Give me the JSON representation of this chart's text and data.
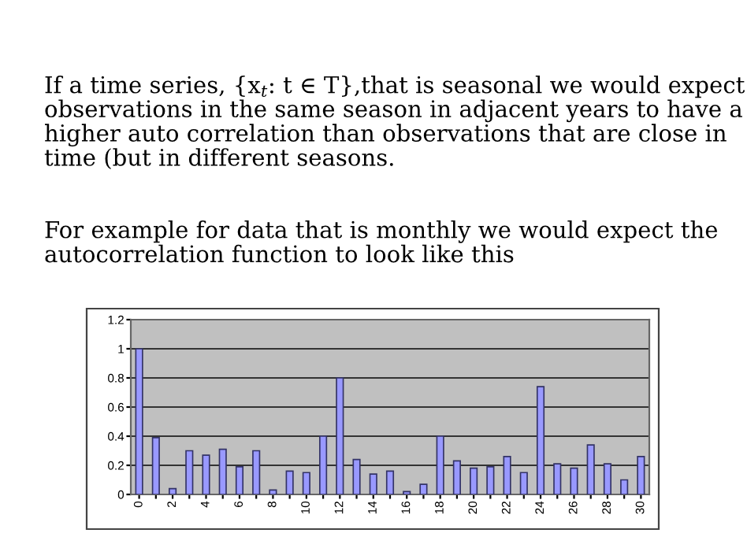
{
  "chart_data": {
    "type": "bar",
    "title": "If a time series, {x$_{t}$: t ∈ T},that is seasonal we would expect observations in the same season in adjacent years to have a higher auto correlation than observations that are close in time (but in different seasons.",
    "subtitle": "For example for data that is monthly we would expect the autocorrelation function to look like this",
    "categories": [
      "0",
      null,
      "2",
      null,
      "4",
      null,
      "6",
      null,
      "8",
      null,
      "10",
      null,
      "12",
      null,
      "14",
      null,
      "16",
      null,
      "18",
      null,
      "20",
      null,
      "22",
      null,
      "24",
      null,
      "26",
      null,
      "28",
      null,
      "30"
    ],
    "values": [
      1.0,
      0.39,
      0.04,
      0.3,
      0.27,
      0.31,
      0.19,
      0.3,
      0.03,
      0.16,
      0.15,
      0.4,
      0.8,
      0.24,
      0.14,
      0.16,
      0.02,
      0.07,
      0.4,
      0.23,
      0.18,
      0.19,
      0.26,
      0.15,
      0.74,
      0.21,
      0.18,
      0.34,
      0.21,
      0.1,
      0.26
    ],
    "color": "#9999ff",
    "ylim": [
      0,
      1.2
    ],
    "yticks": [
      0,
      0.2,
      0.4,
      0.6,
      0.8,
      1,
      1.2
    ],
    "grid": "y",
    "legend": false
  }
}
